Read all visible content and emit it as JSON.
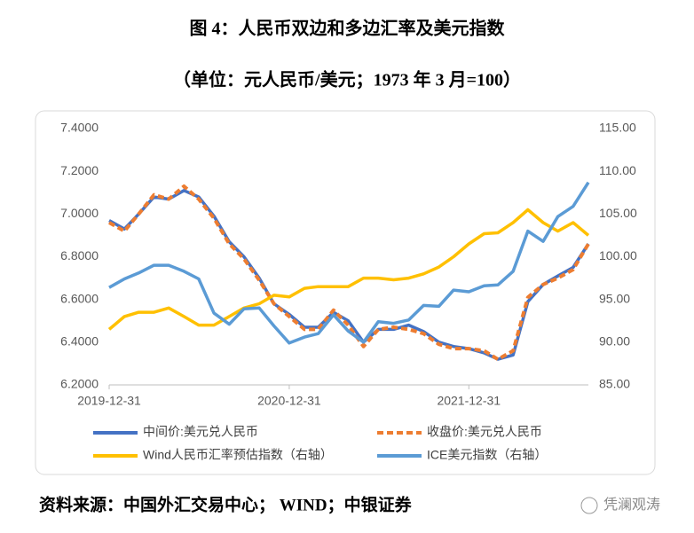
{
  "chart_data": {
    "type": "line",
    "title": "图 4：人民币双边和多边汇率及美元指数",
    "subtitle": "（单位：元人民币/美元；1973 年 3 月=100）",
    "x": [
      "2019-12-31",
      "2020-01-31",
      "2020-02-29",
      "2020-03-31",
      "2020-04-30",
      "2020-05-31",
      "2020-06-30",
      "2020-07-31",
      "2020-08-31",
      "2020-09-30",
      "2020-10-31",
      "2020-11-30",
      "2020-12-31",
      "2021-01-31",
      "2021-02-28",
      "2021-03-31",
      "2021-04-30",
      "2021-05-31",
      "2021-06-30",
      "2021-07-31",
      "2021-08-31",
      "2021-09-30",
      "2021-10-31",
      "2021-11-30",
      "2021-12-31",
      "2022-01-31",
      "2022-02-28",
      "2022-03-31",
      "2022-04-30",
      "2022-05-31",
      "2022-06-30",
      "2022-07-31",
      "2022-08-31"
    ],
    "xlim": [
      "2019-12-31",
      "2022-08-31"
    ],
    "xticks": [
      "2019-12-31",
      "2020-12-31",
      "2021-12-31"
    ],
    "ylim": [
      6.2,
      7.4
    ],
    "yticks": [
      {
        "value": 6.2,
        "label": "6.2000"
      },
      {
        "value": 6.4,
        "label": "6.4000"
      },
      {
        "value": 6.6,
        "label": "6.6000"
      },
      {
        "value": 6.8,
        "label": "6.8000"
      },
      {
        "value": 7.0,
        "label": "7.0000"
      },
      {
        "value": 7.2,
        "label": "7.2000"
      },
      {
        "value": 7.4,
        "label": "7.4000"
      }
    ],
    "y2lim": [
      85,
      115
    ],
    "y2ticks": [
      {
        "value": 85,
        "label": "85.00"
      },
      {
        "value": 90,
        "label": "90.00"
      },
      {
        "value": 95,
        "label": "95.00"
      },
      {
        "value": 100,
        "label": "100.00"
      },
      {
        "value": 105,
        "label": "105.00"
      },
      {
        "value": 110,
        "label": "110.00"
      },
      {
        "value": 115,
        "label": "115.00"
      }
    ],
    "series": [
      {
        "name": "中间价:美元兑人民币",
        "color": "#4472c4",
        "style": "solid",
        "values": [
          6.97,
          6.93,
          7.0,
          7.08,
          7.07,
          7.11,
          7.08,
          6.99,
          6.87,
          6.8,
          6.7,
          6.58,
          6.53,
          6.47,
          6.47,
          6.54,
          6.5,
          6.4,
          6.46,
          6.46,
          6.48,
          6.45,
          6.4,
          6.38,
          6.37,
          6.35,
          6.32,
          6.34,
          6.59,
          6.67,
          6.71,
          6.75,
          6.86
        ]
      },
      {
        "name": "收盘价:美元兑人民币",
        "color": "#ed7d31",
        "style": "dashed",
        "values": [
          6.96,
          6.92,
          7.0,
          7.09,
          7.07,
          7.13,
          7.07,
          6.98,
          6.86,
          6.79,
          6.69,
          6.58,
          6.52,
          6.46,
          6.46,
          6.55,
          6.48,
          6.38,
          6.46,
          6.47,
          6.46,
          6.44,
          6.39,
          6.37,
          6.37,
          6.36,
          6.32,
          6.36,
          6.61,
          6.67,
          6.7,
          6.74,
          6.86
        ]
      },
      {
        "name": "Wind人民币汇率预估指数（右轴）",
        "color": "#ffc000",
        "style": "solid",
        "axis": "y2",
        "values": [
          91.5,
          93,
          93.5,
          93.5,
          94,
          93,
          92,
          92,
          93,
          94,
          94.5,
          95.5,
          95.3,
          96.3,
          96.5,
          96.5,
          96.5,
          97.5,
          97.5,
          97.3,
          97.5,
          98,
          98.8,
          100,
          101.5,
          102.7,
          102.8,
          104,
          105.5,
          104,
          103,
          104,
          102.5
        ]
      },
      {
        "name": "ICE美元指数（右轴）",
        "color": "#5b9bd5",
        "style": "solid",
        "axis": "y2",
        "values": [
          96.4,
          97.4,
          98.1,
          99.0,
          99.0,
          98.3,
          97.4,
          93.4,
          92.1,
          93.9,
          94.0,
          91.9,
          89.9,
          90.6,
          91.0,
          93.2,
          91.3,
          90.0,
          92.4,
          92.2,
          92.6,
          94.3,
          94.2,
          96.1,
          95.9,
          96.6,
          96.7,
          98.3,
          103.0,
          101.8,
          104.7,
          105.9,
          108.7
        ]
      }
    ],
    "source": "资料来源：中国外汇交易中心； WIND；中银证券",
    "watermark": "凭澜观涛"
  }
}
